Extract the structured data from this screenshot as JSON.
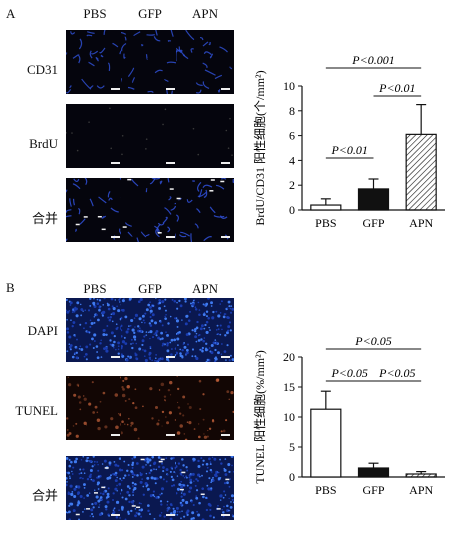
{
  "panelA": {
    "letter": "A",
    "columns": [
      "PBS",
      "GFP",
      "APN"
    ],
    "rows": [
      "CD31",
      "BrdU",
      "合并"
    ],
    "tile_colors": {
      "CD31": "#2f4fd0",
      "BrdU": "#2a2a2a",
      "merge": "#3050d8"
    }
  },
  "panelB": {
    "letter": "B",
    "columns": [
      "PBS",
      "GFP",
      "APN"
    ],
    "rows": [
      "DAPI",
      "TUNEL",
      "合并"
    ],
    "tile_colors": {
      "DAPI": "#1e50c8",
      "TUNEL": "#c0603a",
      "merge": "#2a58d0"
    }
  },
  "chart_data": [
    {
      "type": "bar",
      "categories": [
        "PBS",
        "GFP",
        "APN"
      ],
      "values": [
        0.4,
        1.7,
        6.1
      ],
      "errors": [
        0.5,
        0.8,
        2.4
      ],
      "bar_styles": [
        "white",
        "black",
        "hatched"
      ],
      "ylabel": "BrdU/CD31 阳性细胞(个/mm²)",
      "ylim": [
        0,
        10
      ],
      "yticks": [
        0,
        2,
        4,
        6,
        8,
        10
      ],
      "annotations": [
        {
          "text": "P<0.01",
          "from": "PBS",
          "to": "GFP"
        },
        {
          "text": "P<0.001",
          "from": "PBS",
          "to": "APN"
        },
        {
          "text": "P<0.01",
          "from": "GFP",
          "to": "APN"
        }
      ]
    },
    {
      "type": "bar",
      "categories": [
        "PBS",
        "GFP",
        "APN"
      ],
      "values": [
        11.3,
        1.5,
        0.5
      ],
      "errors": [
        3.0,
        0.8,
        0.4
      ],
      "bar_styles": [
        "white",
        "black",
        "hatched"
      ],
      "ylabel": "TUNEL 阳性细胞(%/mm²)",
      "ylim": [
        0,
        20
      ],
      "yticks": [
        0,
        5,
        10,
        15,
        20
      ],
      "annotations": [
        {
          "text": "P<0.05",
          "from": "PBS",
          "to": "GFP"
        },
        {
          "text": "P<0.05",
          "from": "PBS",
          "to": "APN"
        },
        {
          "text": "P<0.05",
          "from": "GFP",
          "to": "APN"
        }
      ]
    }
  ]
}
